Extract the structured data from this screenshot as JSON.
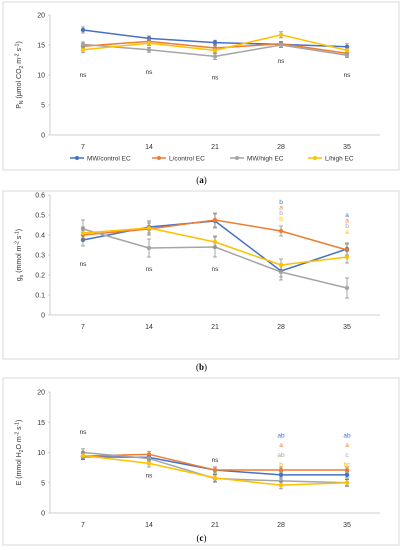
{
  "colors": {
    "frame": "#d0d0d0",
    "axis": "#bfbfbf",
    "text": "#333333",
    "error": "#808080"
  },
  "chart_data": [
    {
      "type": "line",
      "caption": "(a)",
      "ylabel_parts": {
        "main": "P",
        "sub1": "N",
        "mid": " (μmol CO",
        "sub2": "2",
        "mid2": " m",
        "sup1": "-2",
        "mid3": " s",
        "sup2": "-1",
        "end": ")"
      },
      "categories": [
        "7",
        "14",
        "21",
        "28",
        "35"
      ],
      "ylim": [
        0,
        20
      ],
      "yticks": [
        "0",
        "5",
        "10",
        "15",
        "20"
      ],
      "grid": false,
      "series": [
        {
          "name": "MW/control EC",
          "color": "#4472C4",
          "values": [
            17.5,
            16.1,
            15.4,
            15.1,
            14.7
          ],
          "errors": [
            0.5,
            0.4,
            0.4,
            0.5,
            0.5
          ]
        },
        {
          "name": "L/control EC",
          "color": "#ED7D31",
          "values": [
            14.8,
            15.6,
            14.5,
            15.2,
            13.6
          ],
          "errors": [
            0.4,
            0.4,
            0.4,
            0.4,
            0.4
          ]
        },
        {
          "name": "MW/high EC",
          "color": "#A5A5A5",
          "values": [
            15.1,
            14.2,
            13.1,
            15.0,
            13.3
          ],
          "errors": [
            0.4,
            0.4,
            0.5,
            0.4,
            0.4
          ]
        },
        {
          "name": "L/high EC",
          "color": "#FFC000",
          "values": [
            14.2,
            15.3,
            14.1,
            16.7,
            14.1
          ],
          "errors": [
            0.5,
            0.4,
            0.4,
            0.5,
            0.4
          ]
        }
      ],
      "annotations": [
        {
          "category": "7",
          "y": 10.0,
          "text": "ns",
          "color": "#333333"
        },
        {
          "category": "14",
          "y": 10.5,
          "text": "ns",
          "color": "#333333"
        },
        {
          "category": "21",
          "y": 9.6,
          "text": "ns",
          "color": "#333333"
        },
        {
          "category": "28",
          "y": 12.3,
          "text": "ns",
          "color": "#333333"
        },
        {
          "category": "35",
          "y": 10.0,
          "text": "ns",
          "color": "#333333"
        }
      ],
      "legend": "bottom"
    },
    {
      "type": "line",
      "caption": "(b)",
      "ylabel_parts": {
        "main": "g",
        "sub1": "s",
        "mid": " (mmol m",
        "sub2": "",
        "mid2": "",
        "sup1": "-2",
        "mid3": " s",
        "sup2": "-1",
        "end": ")"
      },
      "categories": [
        "7",
        "14",
        "21",
        "28",
        "35"
      ],
      "ylim": [
        0,
        0.6
      ],
      "yticks": [
        "0",
        "0.1",
        "0.2",
        "0.3",
        "0.4",
        "0.5",
        "0.6"
      ],
      "grid": false,
      "series": [
        {
          "name": "MW/control EC",
          "color": "#4472C4",
          "values": [
            0.375,
            0.44,
            0.47,
            0.22,
            0.33
          ],
          "errors": [
            0.03,
            0.03,
            0.035,
            0.03,
            0.03
          ]
        },
        {
          "name": "L/control EC",
          "color": "#ED7D31",
          "values": [
            0.4,
            0.43,
            0.475,
            0.42,
            0.325
          ],
          "errors": [
            0.03,
            0.03,
            0.035,
            0.025,
            0.03
          ]
        },
        {
          "name": "MW/high EC",
          "color": "#A5A5A5",
          "values": [
            0.43,
            0.335,
            0.34,
            0.215,
            0.135
          ],
          "errors": [
            0.045,
            0.045,
            0.05,
            0.04,
            0.05
          ]
        },
        {
          "name": "L/high EC",
          "color": "#FFC000",
          "values": [
            0.41,
            0.435,
            0.365,
            0.25,
            0.29
          ],
          "errors": [
            0.03,
            0.035,
            0.03,
            0.03,
            0.03
          ]
        }
      ],
      "annotations": [
        {
          "category": "7",
          "y": 0.255,
          "text": "ns",
          "color": "#333333"
        },
        {
          "category": "14",
          "y": 0.23,
          "text": "ns",
          "color": "#333333"
        },
        {
          "category": "21",
          "y": 0.23,
          "text": "ns",
          "color": "#333333"
        },
        {
          "category": "28",
          "y": 0.565,
          "text": "b",
          "color": "#4472C4"
        },
        {
          "category": "28",
          "y": 0.537,
          "text": "a",
          "color": "#ED7D31"
        },
        {
          "category": "28",
          "y": 0.509,
          "text": "b",
          "color": "#A5A5A5"
        },
        {
          "category": "28",
          "y": 0.481,
          "text": "b",
          "color": "#FFC000"
        },
        {
          "category": "35",
          "y": 0.5,
          "text": "a",
          "color": "#4472C4"
        },
        {
          "category": "35",
          "y": 0.472,
          "text": "a",
          "color": "#ED7D31"
        },
        {
          "category": "35",
          "y": 0.444,
          "text": "b",
          "color": "#A5A5A5"
        },
        {
          "category": "35",
          "y": 0.416,
          "text": "a",
          "color": "#FFC000"
        }
      ]
    },
    {
      "type": "line",
      "caption": "(c)",
      "ylabel_parts": {
        "main": "E",
        "sub1": "",
        "mid": " (mmol H",
        "sub2": "2",
        "mid2": "O m",
        "sup1": "-2",
        "mid3": " s",
        "sup2": "-1",
        "end": ")"
      },
      "categories": [
        "7",
        "14",
        "21",
        "28",
        "35"
      ],
      "ylim": [
        0,
        20
      ],
      "yticks": [
        "0",
        "5",
        "10",
        "15",
        "20"
      ],
      "grid": false,
      "series": [
        {
          "name": "MW/control EC",
          "color": "#4472C4",
          "values": [
            9.3,
            9.2,
            7.1,
            6.3,
            6.3
          ],
          "errors": [
            0.5,
            0.5,
            0.5,
            0.5,
            0.5
          ]
        },
        {
          "name": "L/control EC",
          "color": "#ED7D31",
          "values": [
            9.4,
            9.7,
            7.1,
            7.1,
            7.1
          ],
          "errors": [
            0.5,
            0.5,
            0.5,
            0.5,
            0.5
          ]
        },
        {
          "name": "MW/high EC",
          "color": "#A5A5A5",
          "values": [
            10.0,
            9.0,
            5.7,
            5.3,
            5.0
          ],
          "errors": [
            0.6,
            0.5,
            0.6,
            0.5,
            0.5
          ]
        },
        {
          "name": "L/high EC",
          "color": "#FFC000",
          "values": [
            9.5,
            8.2,
            5.8,
            4.6,
            5.0
          ],
          "errors": [
            0.6,
            0.6,
            0.6,
            0.6,
            0.6
          ]
        }
      ],
      "annotations": [
        {
          "category": "7",
          "y": 13.4,
          "text": "ns",
          "color": "#333333"
        },
        {
          "category": "14",
          "y": 6.2,
          "text": "ns",
          "color": "#333333"
        },
        {
          "category": "21",
          "y": 8.8,
          "text": "ns",
          "color": "#333333"
        },
        {
          "category": "28",
          "y": 12.8,
          "text": "ab",
          "color": "#4472C4"
        },
        {
          "category": "28",
          "y": 11.2,
          "text": "a",
          "color": "#ED7D31"
        },
        {
          "category": "28",
          "y": 9.6,
          "text": "ab",
          "color": "#A5A5A5"
        },
        {
          "category": "28",
          "y": 8.0,
          "text": "b",
          "color": "#FFC000"
        },
        {
          "category": "35",
          "y": 12.8,
          "text": "ab",
          "color": "#4472C4"
        },
        {
          "category": "35",
          "y": 11.2,
          "text": "a",
          "color": "#ED7D31"
        },
        {
          "category": "35",
          "y": 9.6,
          "text": "c",
          "color": "#A5A5A5"
        },
        {
          "category": "35",
          "y": 8.0,
          "text": "bc",
          "color": "#FFC000"
        }
      ]
    }
  ]
}
